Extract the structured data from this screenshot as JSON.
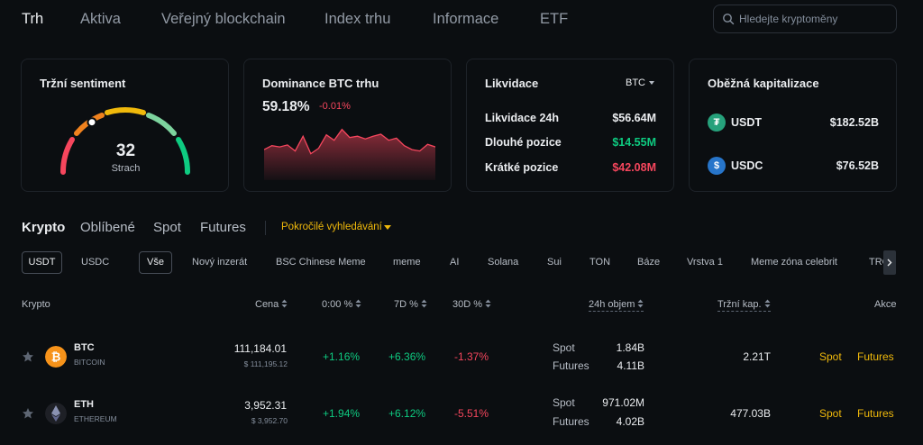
{
  "nav": {
    "tabs": [
      "Trh",
      "Aktiva",
      "Veřejný blockchain",
      "Index trhu",
      "Informace",
      "ETF"
    ],
    "search_placeholder": "Hledejte kryptoměny"
  },
  "sentiment": {
    "title": "Tržní sentiment",
    "value": "32",
    "label": "Strach",
    "score": 32
  },
  "dominance": {
    "title": "Dominance BTC trhu",
    "pct": "59.18%",
    "change": "-0.01%",
    "series": [
      40,
      46,
      44,
      47,
      38,
      60,
      34,
      42,
      62,
      54,
      70,
      58,
      60,
      56,
      60,
      63,
      54,
      57,
      46,
      40,
      38,
      48,
      44
    ]
  },
  "liquidation": {
    "title": "Likvidace",
    "selector": "BTC",
    "rows": [
      {
        "label": "Likvidace 24h",
        "value": "$56.64M"
      },
      {
        "label": "Dlouhé pozice",
        "value": "$14.55M"
      },
      {
        "label": "Krátké pozice",
        "value": "$42.08M"
      }
    ]
  },
  "circulating": {
    "title": "Oběžná kapitalizace",
    "rows": [
      {
        "symbol": "USDT",
        "value": "$182.52B",
        "icon": "tether-icon",
        "glyph": "₮",
        "color": "#26a17b"
      },
      {
        "symbol": "USDC",
        "value": "$76.52B",
        "icon": "usdc-icon",
        "glyph": "$",
        "color": "#2775ca"
      }
    ]
  },
  "sections": {
    "tabs": [
      "Krypto",
      "Oblíbené",
      "Spot",
      "Futures"
    ],
    "advanced": "Pokročilé vyhledávání"
  },
  "quote": [
    "USDT",
    "USDC"
  ],
  "filters": [
    "Vše",
    "Nový inzerát",
    "BSC Chinese Meme",
    "meme",
    "AI",
    "Solana",
    "Sui",
    "TON",
    "Báze",
    "Vrstva 1",
    "Meme zóna celebrit",
    "TRON"
  ],
  "table": {
    "headers": {
      "crypto": "Krypto",
      "price": "Cena",
      "c0": "0:00 %",
      "c7": "7D %",
      "c30": "30D %",
      "volume": "24h objem",
      "mcap": "Tržní kap.",
      "action": "Akce"
    },
    "rows": [
      {
        "symbol": "BTC",
        "name": "BITCOIN",
        "price": "111,184.01",
        "usd": "$ 111,195.12",
        "c0": "+1.16%",
        "c7": "+6.36%",
        "c30": "-1.37%",
        "spot_label": "Spot",
        "spot_vol": "1.84B",
        "fut_label": "Futures",
        "fut_vol": "4.11B",
        "mcap": "2.21T",
        "act_spot": "Spot",
        "act_fut": "Futures",
        "icon": "bitcoin-icon",
        "color": "#f7931a"
      },
      {
        "symbol": "ETH",
        "name": "ETHEREUM",
        "price": "3,952.31",
        "usd": "$ 3,952.70",
        "c0": "+1.94%",
        "c7": "+6.12%",
        "c30": "-5.51%",
        "spot_label": "Spot",
        "spot_vol": "971.02M",
        "fut_label": "Futures",
        "fut_vol": "4.02B",
        "mcap": "477.03B",
        "act_spot": "Spot",
        "act_fut": "Futures",
        "icon": "ethereum-icon",
        "color": "#1e2026"
      }
    ]
  }
}
